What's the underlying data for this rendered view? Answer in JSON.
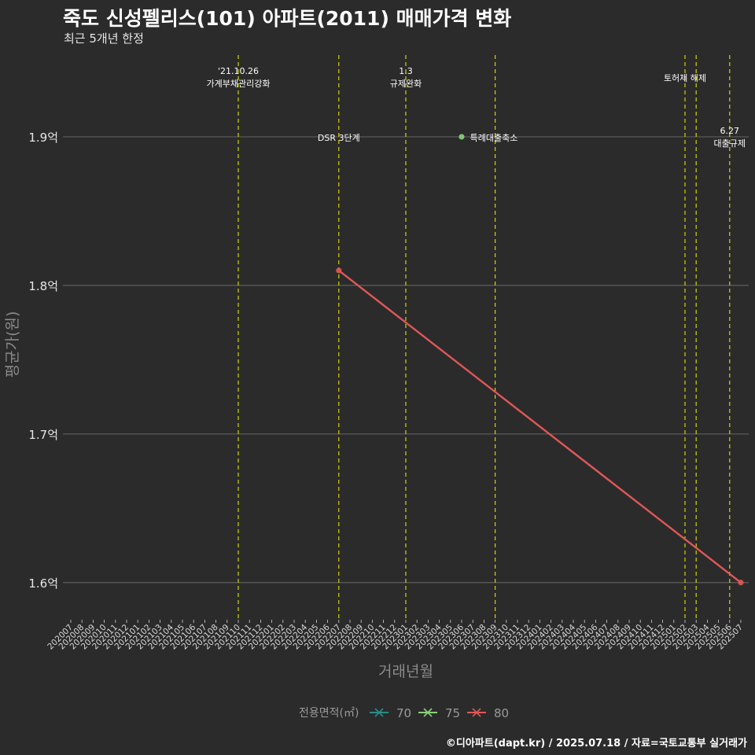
{
  "title": "죽도 신성펠리스(101) 아파트(2011) 매매가격 변화",
  "subtitle": "최근 5개년 한정",
  "credit": "©디아파트(dapt.kr) / 2025.07.18 / 자료=국토교통부 실거래가",
  "colors": {
    "background": "#2b2b2b",
    "grid": "#5e5e5e",
    "event_line": "#d4d400",
    "s70": "#2a8c8c",
    "s75": "#8bd17c",
    "s80": "#e05757"
  },
  "chart_data": {
    "type": "line",
    "title": "죽도 신성펠리스(101) 아파트(2011) 매매가격 변화",
    "subtitle": "최근 5개년 한정",
    "xlabel": "거래년월",
    "ylabel": "평균가(원)",
    "ylim": [
      1.575,
      1.955
    ],
    "yticks": [
      1.6,
      1.7,
      1.8,
      1.9
    ],
    "ytick_labels": [
      "1.6억",
      "1.7억",
      "1.8억",
      "1.9억"
    ],
    "categories": [
      "202007",
      "202008",
      "202009",
      "202010",
      "202011",
      "202012",
      "202101",
      "202102",
      "202103",
      "202104",
      "202105",
      "202106",
      "202107",
      "202108",
      "202109",
      "202110",
      "202111",
      "202112",
      "202201",
      "202202",
      "202203",
      "202204",
      "202205",
      "202206",
      "202207",
      "202208",
      "202209",
      "202210",
      "202211",
      "202212",
      "202301",
      "202302",
      "202303",
      "202304",
      "202305",
      "202306",
      "202307",
      "202308",
      "202309",
      "202310",
      "202311",
      "202312",
      "202401",
      "202402",
      "202403",
      "202404",
      "202405",
      "202406",
      "202407",
      "202408",
      "202409",
      "202410",
      "202411",
      "202412",
      "202501",
      "202502",
      "202503",
      "202504",
      "202505",
      "202506",
      "202507"
    ],
    "series": [
      {
        "name": "70",
        "color": "#2a8c8c",
        "points": []
      },
      {
        "name": "75",
        "color": "#8bd17c",
        "points": [
          {
            "x": "202306",
            "y": 1.9
          }
        ]
      },
      {
        "name": "80",
        "color": "#e05757",
        "points": [
          {
            "x": "202207",
            "y": 1.81
          },
          {
            "x": "202507",
            "y": 1.6
          }
        ]
      }
    ],
    "events": [
      {
        "x": "202110",
        "lines": [
          "'21.10.26",
          "가계부채관리강화"
        ],
        "row": "top"
      },
      {
        "x": "202207",
        "lines": [
          "DSR 3단계"
        ],
        "row": "mid"
      },
      {
        "x": "202301",
        "lines": [
          "1.3",
          "규제완화"
        ],
        "row": "top"
      },
      {
        "x": "202309",
        "lines": [
          "특례대출축소"
        ],
        "row": "mid"
      },
      {
        "x": "202502",
        "lines": [
          "토허제 해제"
        ],
        "row": "top2"
      },
      {
        "x": "202503",
        "lines": [],
        "row": "none"
      },
      {
        "x": "202506",
        "lines": [
          "6.27",
          "대출규제"
        ],
        "row": "mid2"
      }
    ],
    "legend": {
      "title": "전용면적(㎡)",
      "entries": [
        "70",
        "75",
        "80"
      ],
      "position": "bottom"
    }
  }
}
